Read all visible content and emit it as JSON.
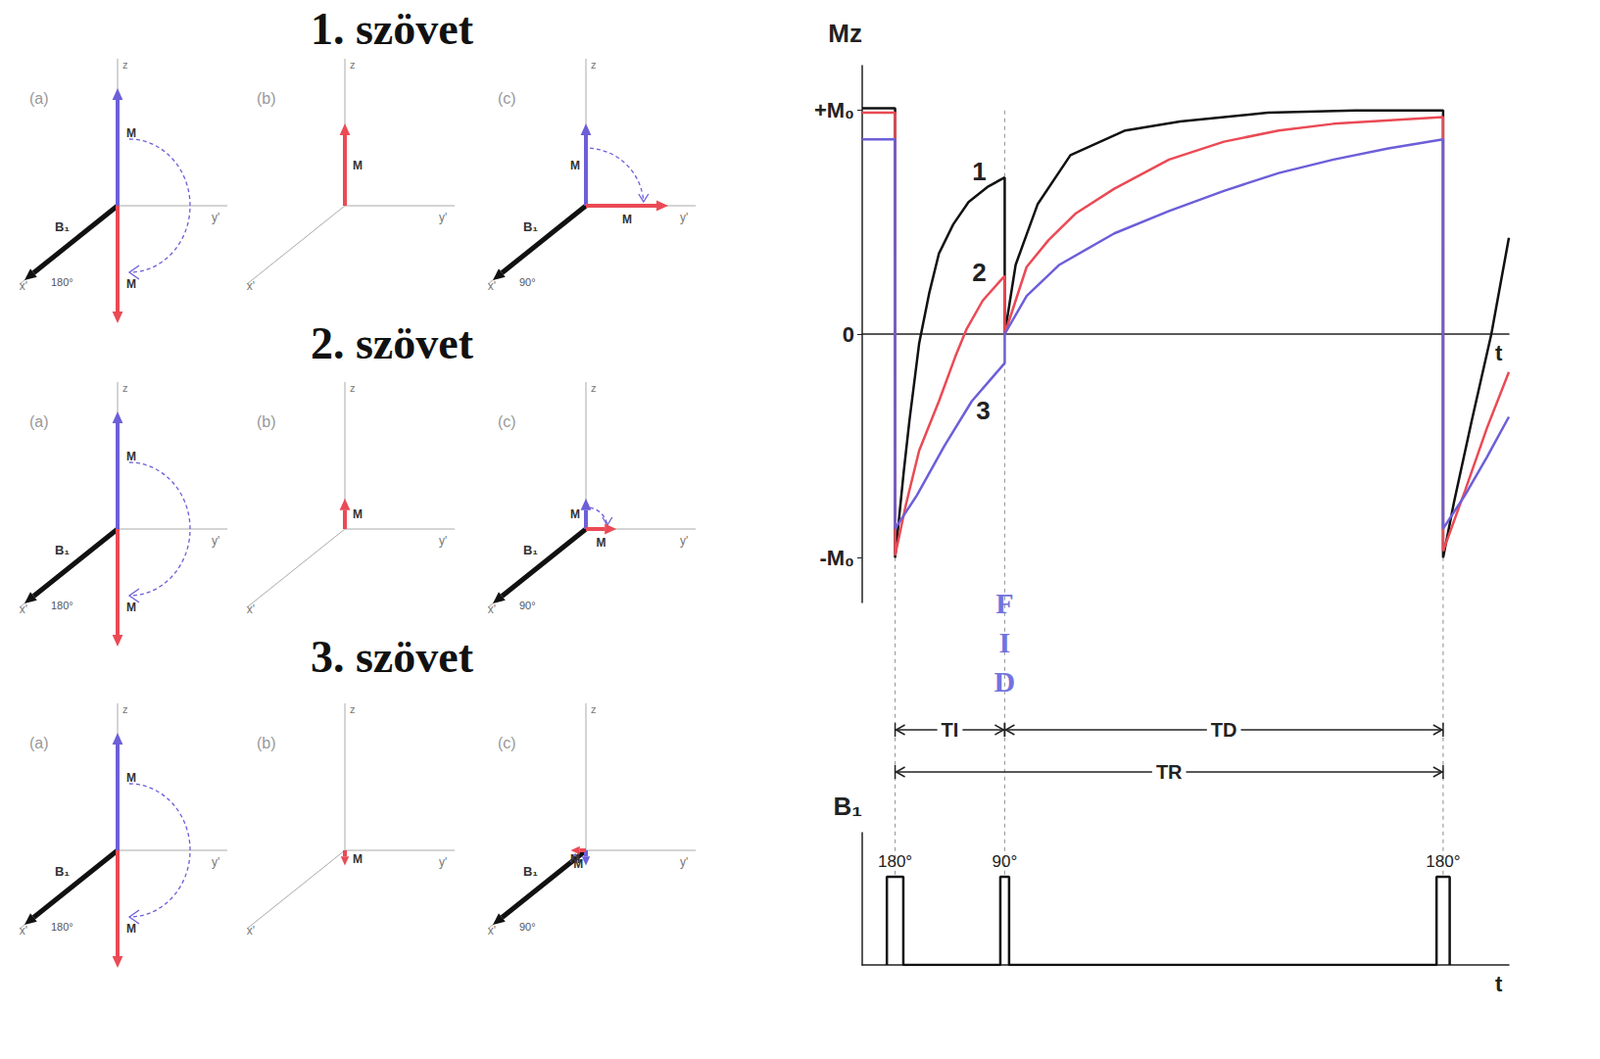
{
  "diagram": {
    "tissues": [
      {
        "title": "1. szövet"
      },
      {
        "title": "2. szövet"
      },
      {
        "title": "3. szövet"
      }
    ],
    "panels": [
      {
        "label": "(a)",
        "pulse": "180°"
      },
      {
        "label": "(b)"
      },
      {
        "label": "(c)",
        "pulse": "90°"
      }
    ],
    "axes": {
      "z": "z",
      "y": "y'",
      "x": "x'"
    },
    "vector": "M",
    "field": "B₁"
  },
  "chart_data": [
    {
      "type": "line",
      "y_label": "Mz",
      "x_label": "t",
      "xlim": [
        -0.3,
        5.6
      ],
      "ylim": [
        -1.2,
        1.2
      ],
      "yticks": [
        {
          "value": 1,
          "label": "+M₀"
        },
        0,
        {
          "value": -1,
          "label": "-M₀"
        }
      ],
      "tick_labels": "y",
      "series": [
        {
          "name": "1",
          "color": "#111111",
          "x": [
            -0.3,
            0,
            0,
            0.08,
            0.13,
            0.22,
            0.31,
            0.4,
            0.53,
            0.67,
            0.85,
            1,
            1,
            1.1,
            1.3,
            1.6,
            2.1,
            2.6,
            3.4,
            4.2,
            5,
            5,
            5.1,
            5.26,
            5.44,
            5.6
          ],
          "values": [
            1.01,
            1.01,
            -1,
            -0.61,
            -0.39,
            -0.04,
            0.18,
            0.36,
            0.49,
            0.59,
            0.66,
            0.7,
            0,
            0.31,
            0.58,
            0.8,
            0.91,
            0.95,
            0.99,
            1,
            1,
            -1,
            -0.75,
            -0.39,
            0,
            0.43
          ]
        },
        {
          "name": "2",
          "color": "#ea4a55",
          "x": [
            -0.3,
            0,
            0,
            0.1,
            0.22,
            0.4,
            0.55,
            0.65,
            0.8,
            1,
            1,
            1.2,
            1.4,
            1.65,
            2,
            2.5,
            3,
            3.5,
            4,
            5,
            5,
            5.2,
            5.4,
            5.6
          ],
          "values": [
            0.99,
            0.99,
            -0.99,
            -0.76,
            -0.52,
            -0.3,
            -0.1,
            0.02,
            0.15,
            0.26,
            0,
            0.3,
            0.42,
            0.54,
            0.65,
            0.78,
            0.86,
            0.91,
            0.94,
            0.97,
            -0.97,
            -0.7,
            -0.42,
            -0.17
          ]
        },
        {
          "name": "3",
          "color": "#6c5fd8",
          "x": [
            -0.3,
            0,
            0,
            0.2,
            0.45,
            0.7,
            1,
            1,
            1.2,
            1.5,
            2,
            2.5,
            3,
            3.5,
            4,
            4.5,
            5,
            5,
            5.2,
            5.4,
            5.6
          ],
          "values": [
            0.87,
            0.87,
            -0.87,
            -0.72,
            -0.5,
            -0.3,
            -0.13,
            0,
            0.17,
            0.31,
            0.45,
            0.55,
            0.64,
            0.72,
            0.78,
            0.83,
            0.87,
            -0.87,
            -0.72,
            -0.55,
            -0.37
          ]
        }
      ],
      "annotations": {
        "fid": "FID",
        "intervals": [
          {
            "label": "TI",
            "from": 0,
            "to": 1
          },
          {
            "label": "TD",
            "from": 1,
            "to": 5
          },
          {
            "label": "TR",
            "from": 0,
            "to": 5
          }
        ]
      }
    },
    {
      "type": "line",
      "y_label": "B₁",
      "x_label": "t",
      "xlim": [
        -0.3,
        5.6
      ],
      "ylim": [
        0,
        1.5
      ],
      "tick_labels": false,
      "pulses": [
        {
          "t": 0,
          "width": 0.15,
          "height": 1,
          "label": "180°"
        },
        {
          "t": 1,
          "width": 0.08,
          "height": 1,
          "label": "90°"
        },
        {
          "t": 5,
          "width": 0.12,
          "height": 1,
          "label": "180°"
        }
      ]
    }
  ]
}
